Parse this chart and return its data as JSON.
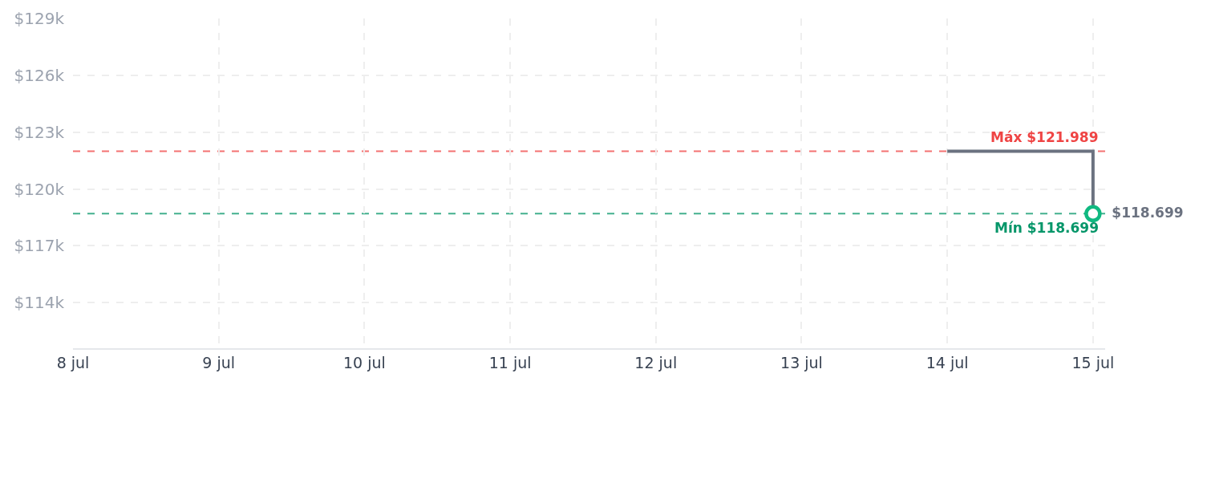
{
  "chart_data": {
    "type": "step",
    "series": [
      {
        "color": "#6b7280",
        "x": [
          "--07-14",
          "--07-15"
        ],
        "values": [
          121989,
          118699
        ]
      },
      {
        "type": "scatter",
        "color": "#10b981",
        "x": [
          "--07-15"
        ],
        "values": [
          118699
        ],
        "marker": "circle",
        "value_labels": [
          "$118.699"
        ]
      }
    ],
    "xlim": [
      "--07-08",
      "--07-15T02:00"
    ],
    "xticks": [
      {
        "value": "--07-08",
        "label": "8 jul"
      },
      {
        "value": "--07-09",
        "label": "9 jul"
      },
      {
        "value": "--07-10",
        "label": "10 jul"
      },
      {
        "value": "--07-11",
        "label": "11 jul"
      },
      {
        "value": "--07-12",
        "label": "12 jul"
      },
      {
        "value": "--07-13",
        "label": "13 jul"
      },
      {
        "value": "--07-14",
        "label": "14 jul"
      },
      {
        "value": "--07-15",
        "label": "15 jul"
      }
    ],
    "ylim": [
      111600,
      129000
    ],
    "yticks": [
      {
        "value": 114000,
        "label": "$114k"
      },
      {
        "value": 117000,
        "label": "$117k"
      },
      {
        "value": 120000,
        "label": "$120k"
      },
      {
        "value": 123000,
        "label": "$123k"
      },
      {
        "value": 126000,
        "label": "$126k"
      },
      {
        "value": 129000,
        "label": "$129k"
      }
    ],
    "ref_lines": [
      {
        "axis": "y",
        "value": 121989,
        "label": "Máx $121.989",
        "color": "#ef4444",
        "line_style": "dashed"
      },
      {
        "axis": "y",
        "value": 118699,
        "label": "Mín $118.699",
        "color": "#059669",
        "line_style": "dashed"
      }
    ],
    "grid": true
  }
}
